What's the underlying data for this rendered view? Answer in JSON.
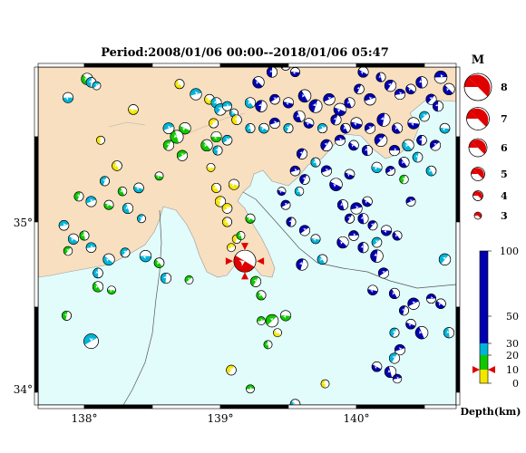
{
  "title": "Period:2008/01/06 00:00--2018/01/06 05:47",
  "map": {
    "lon_ticks": [
      "138°",
      "139°",
      "140°"
    ],
    "lat_ticks": [
      "35°",
      "34°"
    ],
    "colors": {
      "land": "#f7dfbf",
      "sea": "#e2fbfb",
      "frame_dark": "#000000"
    }
  },
  "magnitude_legend": {
    "header": "M",
    "items": [
      "8",
      "7",
      "6",
      "5",
      "4",
      "3"
    ]
  },
  "depth_legend": {
    "ticks": [
      "100",
      "50",
      "30",
      "20",
      "10",
      "0"
    ],
    "unit": "Depth(km)",
    "colors": [
      "#f5e600",
      "#10c800",
      "#00b4d8",
      "#0000b0"
    ]
  },
  "events": [
    {
      "lon": 139.18,
      "lat": 34.77,
      "m": 5.8,
      "depth": "highlight"
    },
    {
      "lon": 137.88,
      "lat": 35.73,
      "m": 3.6,
      "depth": "mid"
    },
    {
      "lon": 138.02,
      "lat": 35.84,
      "m": 3.8,
      "depth": "shallow"
    },
    {
      "lon": 138.05,
      "lat": 35.82,
      "m": 3.5,
      "depth": "mid"
    },
    {
      "lon": 138.09,
      "lat": 35.8,
      "m": 3.2,
      "depth": "mid"
    },
    {
      "lon": 138.36,
      "lat": 35.66,
      "m": 3.5,
      "depth": "surface"
    },
    {
      "lon": 138.7,
      "lat": 35.81,
      "m": 3.4,
      "depth": "surface"
    },
    {
      "lon": 138.12,
      "lat": 35.48,
      "m": 3.2,
      "depth": "surface"
    },
    {
      "lon": 138.72,
      "lat": 35.39,
      "m": 3.6,
      "depth": "shallow"
    },
    {
      "lon": 138.55,
      "lat": 35.27,
      "m": 3.2,
      "depth": "shallow"
    },
    {
      "lon": 138.24,
      "lat": 35.33,
      "m": 3.5,
      "depth": "surface"
    },
    {
      "lon": 137.96,
      "lat": 35.15,
      "m": 3.4,
      "depth": "shallow"
    },
    {
      "lon": 138.05,
      "lat": 35.12,
      "m": 3.6,
      "depth": "mid"
    },
    {
      "lon": 138.18,
      "lat": 35.1,
      "m": 3.4,
      "depth": "shallow"
    },
    {
      "lon": 138.32,
      "lat": 35.08,
      "m": 3.6,
      "depth": "mid"
    },
    {
      "lon": 138.42,
      "lat": 35.02,
      "m": 3.2,
      "depth": "mid"
    },
    {
      "lon": 137.85,
      "lat": 34.98,
      "m": 3.5,
      "depth": "mid"
    },
    {
      "lon": 137.92,
      "lat": 34.9,
      "m": 3.6,
      "depth": "mid"
    },
    {
      "lon": 138.0,
      "lat": 34.92,
      "m": 3.4,
      "depth": "shallow"
    },
    {
      "lon": 137.88,
      "lat": 34.83,
      "m": 3.3,
      "depth": "shallow"
    },
    {
      "lon": 138.05,
      "lat": 34.85,
      "m": 3.5,
      "depth": "mid"
    },
    {
      "lon": 138.18,
      "lat": 34.78,
      "m": 3.8,
      "depth": "mid"
    },
    {
      "lon": 138.1,
      "lat": 34.7,
      "m": 3.5,
      "depth": "mid"
    },
    {
      "lon": 138.3,
      "lat": 34.82,
      "m": 3.4,
      "depth": "mid"
    },
    {
      "lon": 138.45,
      "lat": 34.8,
      "m": 3.8,
      "depth": "mid"
    },
    {
      "lon": 138.55,
      "lat": 34.76,
      "m": 3.5,
      "depth": "shallow"
    },
    {
      "lon": 138.6,
      "lat": 34.67,
      "m": 3.6,
      "depth": "mid"
    },
    {
      "lon": 138.77,
      "lat": 34.66,
      "m": 3.2,
      "depth": "shallow"
    },
    {
      "lon": 138.2,
      "lat": 34.6,
      "m": 3.2,
      "depth": "shallow"
    },
    {
      "lon": 138.1,
      "lat": 34.62,
      "m": 3.6,
      "depth": "shallow"
    },
    {
      "lon": 137.87,
      "lat": 34.45,
      "m": 3.4,
      "depth": "shallow"
    },
    {
      "lon": 138.05,
      "lat": 34.3,
      "m": 4.4,
      "depth": "mid"
    },
    {
      "lon": 138.4,
      "lat": 35.2,
      "m": 3.5,
      "depth": "mid"
    },
    {
      "lon": 138.28,
      "lat": 35.18,
      "m": 3.3,
      "depth": "shallow"
    },
    {
      "lon": 138.15,
      "lat": 35.24,
      "m": 3.4,
      "depth": "mid"
    },
    {
      "lon": 138.62,
      "lat": 35.55,
      "m": 3.7,
      "depth": "mid"
    },
    {
      "lon": 138.74,
      "lat": 35.55,
      "m": 3.8,
      "depth": "shallow"
    },
    {
      "lon": 138.68,
      "lat": 35.5,
      "m": 4.1,
      "depth": "shallow"
    },
    {
      "lon": 138.62,
      "lat": 35.45,
      "m": 3.6,
      "depth": "shallow"
    },
    {
      "lon": 138.82,
      "lat": 35.75,
      "m": 3.8,
      "depth": "mid"
    },
    {
      "lon": 138.92,
      "lat": 35.72,
      "m": 3.5,
      "depth": "surface"
    },
    {
      "lon": 138.97,
      "lat": 35.7,
      "m": 3.6,
      "depth": "mid"
    },
    {
      "lon": 139.0,
      "lat": 35.66,
      "m": 3.8,
      "depth": "mid"
    },
    {
      "lon": 139.05,
      "lat": 35.68,
      "m": 3.4,
      "depth": "mid"
    },
    {
      "lon": 139.1,
      "lat": 35.64,
      "m": 3.2,
      "depth": "mid"
    },
    {
      "lon": 139.12,
      "lat": 35.6,
      "m": 3.5,
      "depth": "surface"
    },
    {
      "lon": 138.95,
      "lat": 35.58,
      "m": 3.4,
      "depth": "surface"
    },
    {
      "lon": 138.97,
      "lat": 35.5,
      "m": 3.6,
      "depth": "shallow"
    },
    {
      "lon": 138.9,
      "lat": 35.45,
      "m": 3.8,
      "depth": "shallow"
    },
    {
      "lon": 138.98,
      "lat": 35.42,
      "m": 3.4,
      "depth": "mid"
    },
    {
      "lon": 139.05,
      "lat": 35.48,
      "m": 3.5,
      "depth": "mid"
    },
    {
      "lon": 138.93,
      "lat": 35.32,
      "m": 3.2,
      "depth": "surface"
    },
    {
      "lon": 138.97,
      "lat": 35.2,
      "m": 3.4,
      "depth": "surface"
    },
    {
      "lon": 139.0,
      "lat": 35.12,
      "m": 3.6,
      "depth": "surface"
    },
    {
      "lon": 139.05,
      "lat": 35.08,
      "m": 3.5,
      "depth": "surface"
    },
    {
      "lon": 139.1,
      "lat": 35.22,
      "m": 3.6,
      "depth": "surface"
    },
    {
      "lon": 139.05,
      "lat": 35.0,
      "m": 3.4,
      "depth": "surface"
    },
    {
      "lon": 139.12,
      "lat": 34.9,
      "m": 3.3,
      "depth": "surface"
    },
    {
      "lon": 139.08,
      "lat": 34.85,
      "m": 3.2,
      "depth": "surface"
    },
    {
      "lon": 139.22,
      "lat": 35.02,
      "m": 3.4,
      "depth": "shallow"
    },
    {
      "lon": 139.15,
      "lat": 34.92,
      "m": 3.2,
      "depth": "shallow"
    },
    {
      "lon": 139.26,
      "lat": 34.65,
      "m": 3.6,
      "depth": "shallow"
    },
    {
      "lon": 139.3,
      "lat": 34.42,
      "m": 3.2,
      "depth": "shallow"
    },
    {
      "lon": 139.42,
      "lat": 34.35,
      "m": 3.2,
      "depth": "surface"
    },
    {
      "lon": 139.35,
      "lat": 34.28,
      "m": 3.2,
      "depth": "shallow"
    },
    {
      "lon": 139.08,
      "lat": 34.13,
      "m": 3.5,
      "depth": "surface"
    },
    {
      "lon": 139.22,
      "lat": 34.02,
      "m": 3.2,
      "depth": "shallow"
    },
    {
      "lon": 139.55,
      "lat": 33.93,
      "m": 3.5,
      "depth": "mid"
    },
    {
      "lon": 139.77,
      "lat": 34.05,
      "m": 3.2,
      "depth": "surface"
    },
    {
      "lon": 139.38,
      "lat": 34.42,
      "m": 4.0,
      "depth": "shallow"
    },
    {
      "lon": 139.48,
      "lat": 34.45,
      "m": 3.6,
      "depth": "shallow"
    },
    {
      "lon": 139.3,
      "lat": 34.57,
      "m": 3.4,
      "depth": "shallow"
    },
    {
      "lon": 139.52,
      "lat": 35.0,
      "m": 3.4,
      "depth": "deep"
    },
    {
      "lon": 139.62,
      "lat": 34.95,
      "m": 3.6,
      "depth": "deep"
    },
    {
      "lon": 139.7,
      "lat": 34.9,
      "m": 3.4,
      "depth": "mid"
    },
    {
      "lon": 139.75,
      "lat": 34.78,
      "m": 3.5,
      "depth": "mid"
    },
    {
      "lon": 139.6,
      "lat": 34.75,
      "m": 3.8,
      "depth": "deep"
    },
    {
      "lon": 139.48,
      "lat": 35.1,
      "m": 3.4,
      "depth": "deep"
    },
    {
      "lon": 139.45,
      "lat": 35.18,
      "m": 3.2,
      "depth": "deep"
    },
    {
      "lon": 139.58,
      "lat": 35.18,
      "m": 3.3,
      "depth": "mid"
    },
    {
      "lon": 139.62,
      "lat": 35.25,
      "m": 3.5,
      "depth": "deep"
    },
    {
      "lon": 139.78,
      "lat": 35.3,
      "m": 3.6,
      "depth": "deep"
    },
    {
      "lon": 139.85,
      "lat": 35.22,
      "m": 4.0,
      "depth": "deep"
    },
    {
      "lon": 139.9,
      "lat": 35.1,
      "m": 3.6,
      "depth": "deep"
    },
    {
      "lon": 139.95,
      "lat": 35.02,
      "m": 3.4,
      "depth": "deep"
    },
    {
      "lon": 140.0,
      "lat": 35.08,
      "m": 3.8,
      "depth": "deep"
    },
    {
      "lon": 140.08,
      "lat": 35.12,
      "m": 3.5,
      "depth": "deep"
    },
    {
      "lon": 140.05,
      "lat": 35.02,
      "m": 3.6,
      "depth": "deep"
    },
    {
      "lon": 140.12,
      "lat": 34.98,
      "m": 3.4,
      "depth": "deep"
    },
    {
      "lon": 139.98,
      "lat": 34.92,
      "m": 3.5,
      "depth": "deep"
    },
    {
      "lon": 139.9,
      "lat": 34.88,
      "m": 3.8,
      "depth": "deep"
    },
    {
      "lon": 140.05,
      "lat": 34.85,
      "m": 3.6,
      "depth": "deep"
    },
    {
      "lon": 140.15,
      "lat": 34.88,
      "m": 3.5,
      "depth": "mid"
    },
    {
      "lon": 140.22,
      "lat": 34.95,
      "m": 3.6,
      "depth": "deep"
    },
    {
      "lon": 140.3,
      "lat": 34.92,
      "m": 3.4,
      "depth": "deep"
    },
    {
      "lon": 140.15,
      "lat": 34.8,
      "m": 4.0,
      "depth": "deep"
    },
    {
      "lon": 140.2,
      "lat": 34.7,
      "m": 3.6,
      "depth": "deep"
    },
    {
      "lon": 140.12,
      "lat": 34.6,
      "m": 3.5,
      "depth": "deep"
    },
    {
      "lon": 140.28,
      "lat": 34.58,
      "m": 3.6,
      "depth": "deep"
    },
    {
      "lon": 140.35,
      "lat": 34.48,
      "m": 3.4,
      "depth": "deep"
    },
    {
      "lon": 140.42,
      "lat": 34.52,
      "m": 3.8,
      "depth": "deep"
    },
    {
      "lon": 140.4,
      "lat": 34.4,
      "m": 3.5,
      "depth": "deep"
    },
    {
      "lon": 140.48,
      "lat": 34.35,
      "m": 4.0,
      "depth": "deep"
    },
    {
      "lon": 140.28,
      "lat": 34.35,
      "m": 3.4,
      "depth": "mid"
    },
    {
      "lon": 140.32,
      "lat": 34.25,
      "m": 3.6,
      "depth": "deep"
    },
    {
      "lon": 140.15,
      "lat": 34.15,
      "m": 3.5,
      "depth": "deep"
    },
    {
      "lon": 140.25,
      "lat": 34.12,
      "m": 3.8,
      "depth": "deep"
    },
    {
      "lon": 140.28,
      "lat": 34.2,
      "m": 3.6,
      "depth": "mid"
    },
    {
      "lon": 140.3,
      "lat": 34.08,
      "m": 3.3,
      "depth": "deep"
    },
    {
      "lon": 140.62,
      "lat": 34.52,
      "m": 3.5,
      "depth": "deep"
    },
    {
      "lon": 140.68,
      "lat": 34.35,
      "m": 3.6,
      "depth": "mid"
    },
    {
      "lon": 140.65,
      "lat": 34.78,
      "m": 3.8,
      "depth": "mid"
    },
    {
      "lon": 140.55,
      "lat": 34.55,
      "m": 3.4,
      "depth": "deep"
    },
    {
      "lon": 139.28,
      "lat": 35.82,
      "m": 3.8,
      "depth": "deep"
    },
    {
      "lon": 139.38,
      "lat": 35.88,
      "m": 3.6,
      "depth": "deep"
    },
    {
      "lon": 139.48,
      "lat": 35.92,
      "m": 3.5,
      "depth": "deep"
    },
    {
      "lon": 139.55,
      "lat": 35.88,
      "m": 3.4,
      "depth": "deep"
    },
    {
      "lon": 139.22,
      "lat": 35.7,
      "m": 3.6,
      "depth": "mid"
    },
    {
      "lon": 139.3,
      "lat": 35.68,
      "m": 3.8,
      "depth": "deep"
    },
    {
      "lon": 139.4,
      "lat": 35.72,
      "m": 3.5,
      "depth": "deep"
    },
    {
      "lon": 139.5,
      "lat": 35.7,
      "m": 3.6,
      "depth": "deep"
    },
    {
      "lon": 139.62,
      "lat": 35.74,
      "m": 4.0,
      "depth": "deep"
    },
    {
      "lon": 139.7,
      "lat": 35.68,
      "m": 4.1,
      "depth": "deep"
    },
    {
      "lon": 139.8,
      "lat": 35.72,
      "m": 3.8,
      "depth": "deep"
    },
    {
      "lon": 139.88,
      "lat": 35.66,
      "m": 4.0,
      "depth": "deep"
    },
    {
      "lon": 139.95,
      "lat": 35.7,
      "m": 3.6,
      "depth": "deep"
    },
    {
      "lon": 140.02,
      "lat": 35.78,
      "m": 3.5,
      "depth": "deep"
    },
    {
      "lon": 140.1,
      "lat": 35.72,
      "m": 3.8,
      "depth": "deep"
    },
    {
      "lon": 140.05,
      "lat": 35.88,
      "m": 3.6,
      "depth": "deep"
    },
    {
      "lon": 140.18,
      "lat": 35.85,
      "m": 3.4,
      "depth": "deep"
    },
    {
      "lon": 140.25,
      "lat": 35.8,
      "m": 3.8,
      "depth": "deep"
    },
    {
      "lon": 140.32,
      "lat": 35.75,
      "m": 3.6,
      "depth": "deep"
    },
    {
      "lon": 140.4,
      "lat": 35.78,
      "m": 3.5,
      "depth": "deep"
    },
    {
      "lon": 140.48,
      "lat": 35.82,
      "m": 3.8,
      "depth": "deep"
    },
    {
      "lon": 140.55,
      "lat": 35.72,
      "m": 3.6,
      "depth": "deep"
    },
    {
      "lon": 140.62,
      "lat": 35.85,
      "m": 4.0,
      "depth": "deep"
    },
    {
      "lon": 140.68,
      "lat": 35.78,
      "m": 3.8,
      "depth": "deep"
    },
    {
      "lon": 140.6,
      "lat": 35.68,
      "m": 3.6,
      "depth": "deep"
    },
    {
      "lon": 140.5,
      "lat": 35.62,
      "m": 3.5,
      "depth": "mid"
    },
    {
      "lon": 140.42,
      "lat": 35.58,
      "m": 3.8,
      "depth": "deep"
    },
    {
      "lon": 140.3,
      "lat": 35.55,
      "m": 3.6,
      "depth": "deep"
    },
    {
      "lon": 140.2,
      "lat": 35.6,
      "m": 4.1,
      "depth": "deep"
    },
    {
      "lon": 140.1,
      "lat": 35.55,
      "m": 3.6,
      "depth": "deep"
    },
    {
      "lon": 140.0,
      "lat": 35.58,
      "m": 3.8,
      "depth": "deep"
    },
    {
      "lon": 139.92,
      "lat": 35.55,
      "m": 3.5,
      "depth": "deep"
    },
    {
      "lon": 139.85,
      "lat": 35.6,
      "m": 3.6,
      "depth": "deep"
    },
    {
      "lon": 139.75,
      "lat": 35.55,
      "m": 3.4,
      "depth": "mid"
    },
    {
      "lon": 139.65,
      "lat": 35.58,
      "m": 3.5,
      "depth": "deep"
    },
    {
      "lon": 139.58,
      "lat": 35.62,
      "m": 3.8,
      "depth": "deep"
    },
    {
      "lon": 139.5,
      "lat": 35.55,
      "m": 3.4,
      "depth": "mid"
    },
    {
      "lon": 139.4,
      "lat": 35.58,
      "m": 3.6,
      "depth": "deep"
    },
    {
      "lon": 139.32,
      "lat": 35.55,
      "m": 3.5,
      "depth": "mid"
    },
    {
      "lon": 139.22,
      "lat": 35.55,
      "m": 3.4,
      "depth": "mid"
    },
    {
      "lon": 139.78,
      "lat": 35.45,
      "m": 3.8,
      "depth": "deep"
    },
    {
      "lon": 139.88,
      "lat": 35.48,
      "m": 3.6,
      "depth": "deep"
    },
    {
      "lon": 139.98,
      "lat": 35.45,
      "m": 3.5,
      "depth": "deep"
    },
    {
      "lon": 140.08,
      "lat": 35.42,
      "m": 3.6,
      "depth": "deep"
    },
    {
      "lon": 140.18,
      "lat": 35.48,
      "m": 4.0,
      "depth": "deep"
    },
    {
      "lon": 140.28,
      "lat": 35.42,
      "m": 3.6,
      "depth": "deep"
    },
    {
      "lon": 140.38,
      "lat": 35.45,
      "m": 3.8,
      "depth": "mid"
    },
    {
      "lon": 140.48,
      "lat": 35.48,
      "m": 3.5,
      "depth": "deep"
    },
    {
      "lon": 140.58,
      "lat": 35.45,
      "m": 3.6,
      "depth": "deep"
    },
    {
      "lon": 140.65,
      "lat": 35.55,
      "m": 3.5,
      "depth": "mid"
    },
    {
      "lon": 140.35,
      "lat": 35.35,
      "m": 3.6,
      "depth": "deep"
    },
    {
      "lon": 140.45,
      "lat": 35.38,
      "m": 3.5,
      "depth": "mid"
    },
    {
      "lon": 140.25,
      "lat": 35.3,
      "m": 3.4,
      "depth": "deep"
    },
    {
      "lon": 140.15,
      "lat": 35.32,
      "m": 3.6,
      "depth": "mid"
    },
    {
      "lon": 140.55,
      "lat": 35.3,
      "m": 3.5,
      "depth": "mid"
    },
    {
      "lon": 140.35,
      "lat": 35.25,
      "m": 3.3,
      "depth": "shallow"
    },
    {
      "lon": 140.4,
      "lat": 35.12,
      "m": 3.4,
      "depth": "deep"
    },
    {
      "lon": 139.95,
      "lat": 35.28,
      "m": 3.5,
      "depth": "deep"
    },
    {
      "lon": 139.7,
      "lat": 35.35,
      "m": 3.4,
      "depth": "mid"
    },
    {
      "lon": 139.6,
      "lat": 35.4,
      "m": 3.6,
      "depth": "deep"
    },
    {
      "lon": 139.55,
      "lat": 35.3,
      "m": 3.5,
      "depth": "deep"
    }
  ]
}
